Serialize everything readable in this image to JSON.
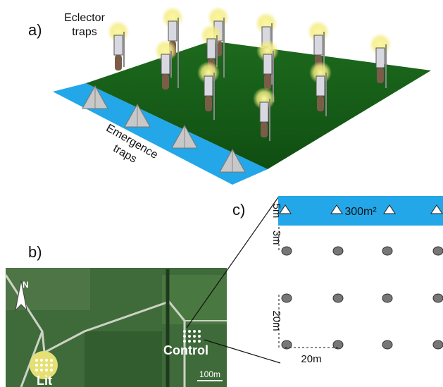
{
  "panel_a": {
    "label": "a)",
    "eclector_label": [
      "Eclector",
      "traps"
    ],
    "emergence_label": [
      "Emergence",
      "traps"
    ]
  },
  "panel_b": {
    "label": "b)",
    "north": "N",
    "lit": "Lit",
    "control": "Control",
    "scale": "100m"
  },
  "panel_c": {
    "label": "c)",
    "strip_width": "5m",
    "gap": "3m",
    "area": "300m²",
    "row_spacing": "20m",
    "column_spacing": "20m"
  }
}
